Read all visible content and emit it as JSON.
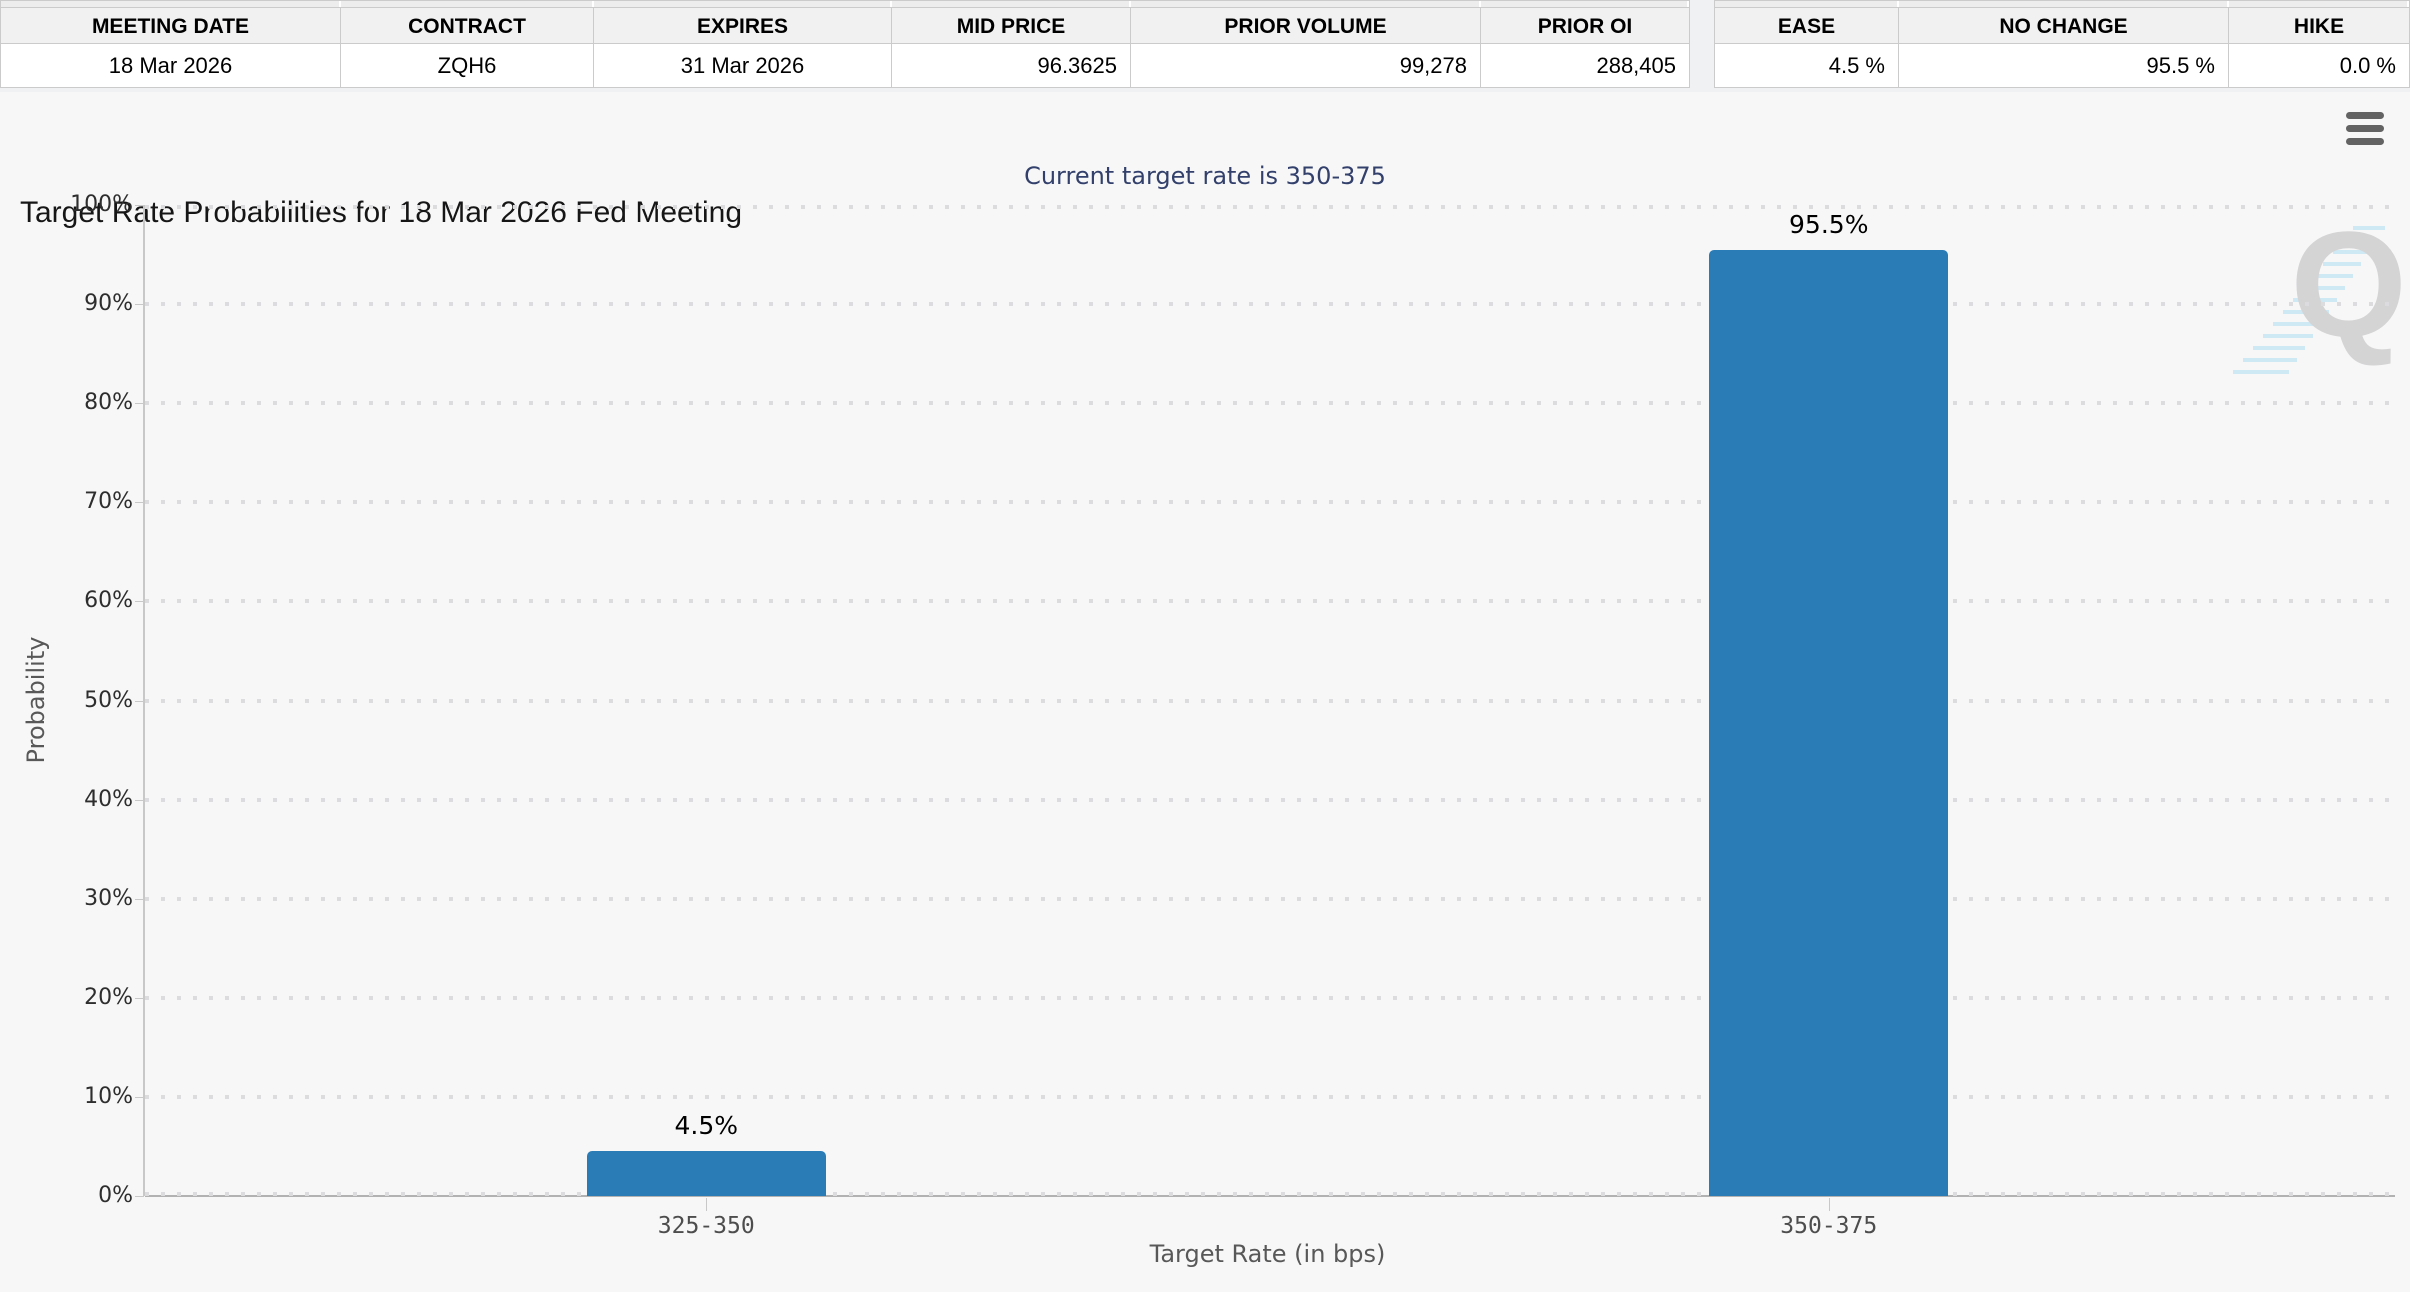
{
  "contract_table": {
    "headers": [
      "MEETING DATE",
      "CONTRACT",
      "EXPIRES",
      "MID PRICE",
      "PRIOR VOLUME",
      "PRIOR OI"
    ],
    "values": [
      "18 Mar 2026",
      "ZQH6",
      "31 Mar 2026",
      "96.3625",
      "99,278",
      "288,405"
    ]
  },
  "action_table": {
    "headers": [
      "EASE",
      "NO CHANGE",
      "HIKE"
    ],
    "values": [
      "4.5 %",
      "95.5 %",
      "0.0 %"
    ]
  },
  "chart": {
    "title": "Target Rate Probabilities for 18 Mar 2026 Fed Meeting",
    "subtitle": "Current target rate is 350-375",
    "menu_icon": "hamburger-menu-icon",
    "watermark_letter": "Q"
  },
  "chart_data": {
    "type": "bar",
    "categories": [
      "325-350",
      "350-375"
    ],
    "values": [
      4.5,
      95.5
    ],
    "data_labels": [
      "4.5%",
      "95.5%"
    ],
    "title": "Target Rate Probabilities for 18 Mar 2026 Fed Meeting",
    "subtitle": "Current target rate is 350-375",
    "xlabel": "Target Rate (in bps)",
    "ylabel": "Probability",
    "ylim": [
      0,
      100
    ],
    "ytick_labels": [
      "0%",
      "10%",
      "20%",
      "30%",
      "40%",
      "50%",
      "60%",
      "70%",
      "80%",
      "90%",
      "100%"
    ],
    "bar_color": "#2a7cb7",
    "grid": "horizontal-dotted",
    "legend": "none"
  }
}
